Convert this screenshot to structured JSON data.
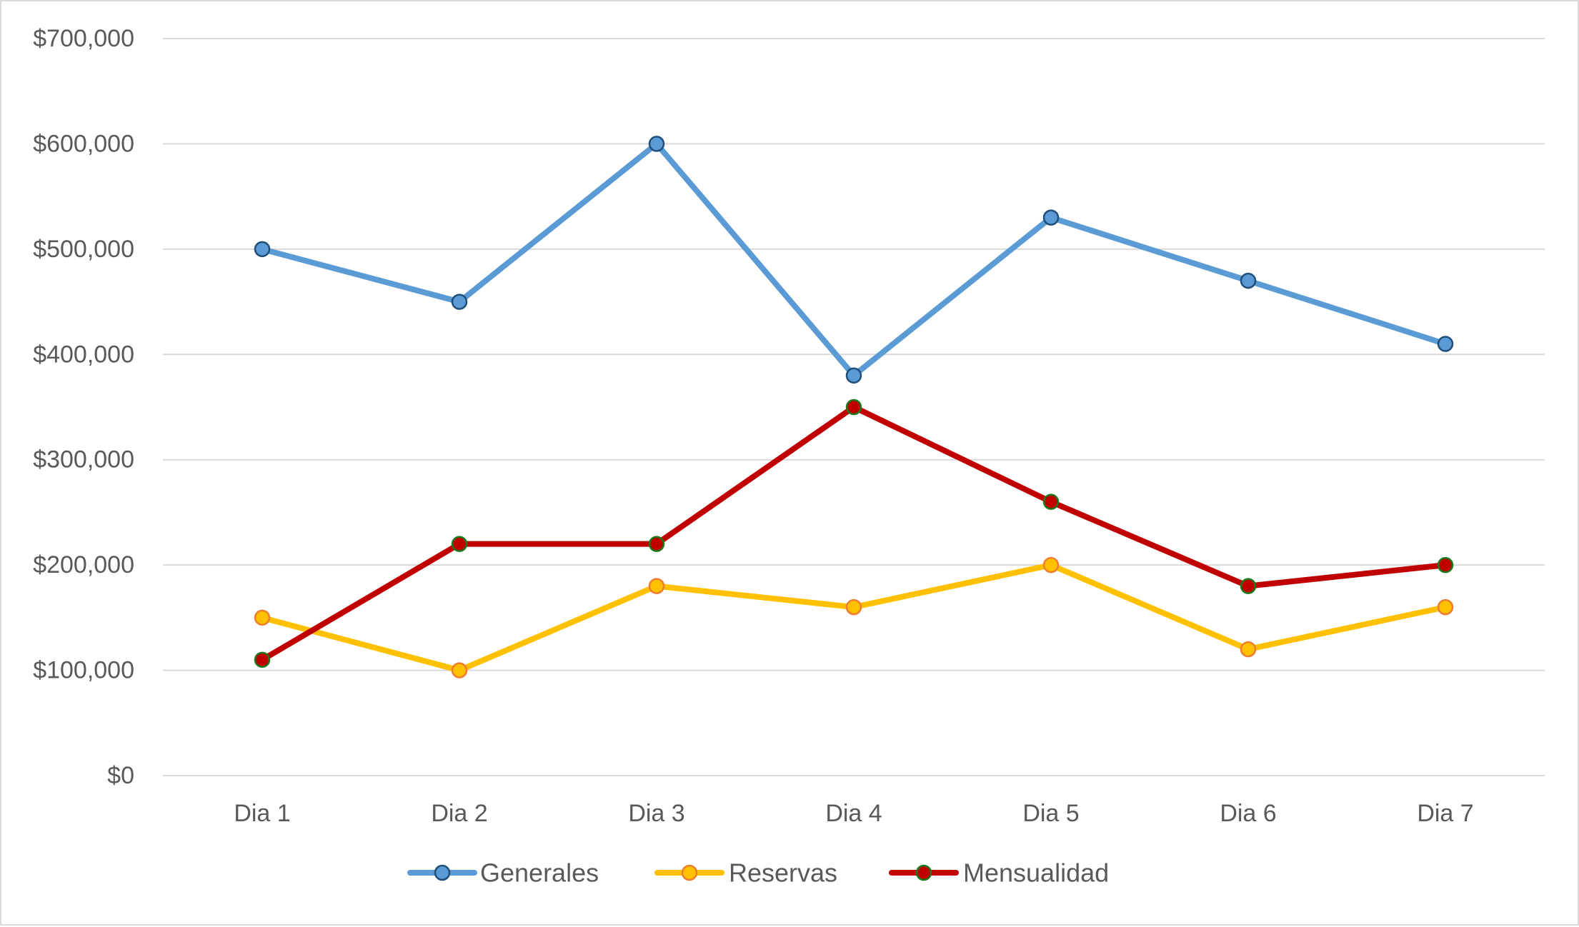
{
  "chart_data": {
    "type": "line",
    "title": "",
    "xlabel": "",
    "ylabel": "",
    "categories": [
      "Dia 1",
      "Dia 2",
      "Dia 3",
      "Dia 4",
      "Dia 5",
      "Dia 6",
      "Dia 7"
    ],
    "ylim": [
      0,
      700000
    ],
    "yticks": [
      0,
      100000,
      200000,
      300000,
      400000,
      500000,
      600000,
      700000
    ],
    "ytick_labels": [
      "$0",
      "$100,000",
      "$200,000",
      "$300,000",
      "$400,000",
      "$500,000",
      "$600,000",
      "$700,000"
    ],
    "grid": true,
    "legend_position": "bottom",
    "series": [
      {
        "name": "Generales",
        "color": "#5b9bd5",
        "marker_fill": "#5b9bd5",
        "marker_edge": "#1f4e79",
        "values": [
          500000,
          450000,
          600000,
          380000,
          530000,
          470000,
          410000
        ]
      },
      {
        "name": "Reservas",
        "color": "#ffc000",
        "marker_fill": "#ffc000",
        "marker_edge": "#ed7d31",
        "values": [
          150000,
          100000,
          180000,
          160000,
          200000,
          120000,
          160000
        ]
      },
      {
        "name": "Mensualidad",
        "color": "#c00000",
        "marker_fill": "#c00000",
        "marker_edge": "#1e7a1e",
        "values": [
          110000,
          220000,
          220000,
          350000,
          260000,
          180000,
          200000
        ]
      }
    ]
  }
}
